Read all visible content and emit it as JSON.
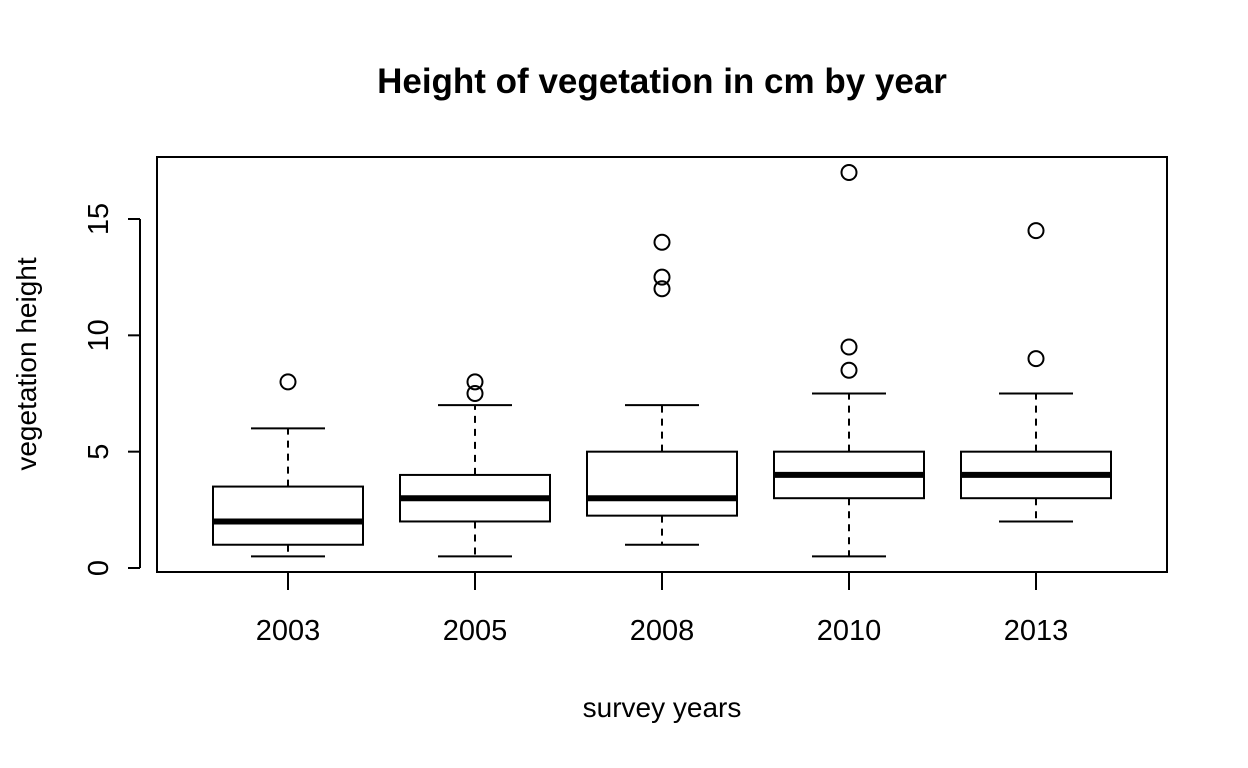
{
  "chart_data": {
    "type": "boxplot",
    "title": "Height of vegetation in cm by year",
    "xlabel": "survey years",
    "ylabel": "vegetation height",
    "categories": [
      "2003",
      "2005",
      "2008",
      "2010",
      "2013"
    ],
    "y_ticks": [
      0,
      5,
      10,
      15
    ],
    "ylim": [
      -0.15,
      17.6
    ],
    "grid": false,
    "legend": "none",
    "boxes": [
      {
        "category": "2003",
        "whisker_low": 0.5,
        "q1": 1.0,
        "median": 2.0,
        "q3": 3.5,
        "whisker_high": 6.0,
        "outliers": [
          8.0
        ]
      },
      {
        "category": "2005",
        "whisker_low": 0.5,
        "q1": 2.0,
        "median": 3.0,
        "q3": 4.0,
        "whisker_high": 7.0,
        "outliers": [
          7.5,
          8.0
        ]
      },
      {
        "category": "2008",
        "whisker_low": 1.0,
        "q1": 2.25,
        "median": 3.0,
        "q3": 5.0,
        "whisker_high": 7.0,
        "outliers": [
          12.0,
          12.5,
          14.0
        ]
      },
      {
        "category": "2010",
        "whisker_low": 0.5,
        "q1": 3.0,
        "median": 4.0,
        "q3": 5.0,
        "whisker_high": 7.5,
        "outliers": [
          8.5,
          9.5,
          17.0
        ]
      },
      {
        "category": "2013",
        "whisker_low": 2.0,
        "q1": 3.0,
        "median": 4.0,
        "q3": 5.0,
        "whisker_high": 7.5,
        "outliers": [
          9.0,
          14.5
        ]
      }
    ],
    "colors": {
      "stroke": "#000000",
      "box_fill": "#ffffff",
      "background": "#ffffff"
    }
  }
}
